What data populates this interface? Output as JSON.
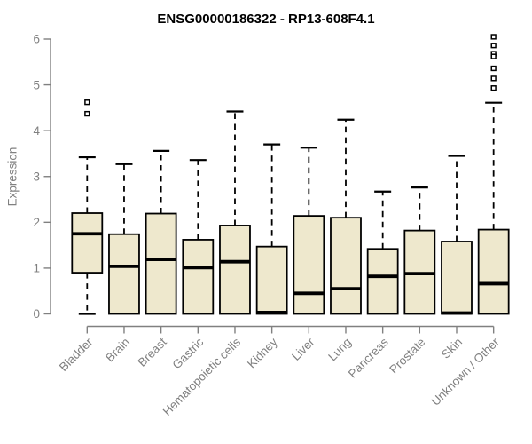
{
  "chart_data": {
    "type": "boxplot",
    "title": "ENSG00000186322 - RP13-608F4.1",
    "ylabel": "Expression",
    "xlabel": "",
    "ylim": [
      0,
      6
    ],
    "yticks": [
      0,
      1,
      2,
      3,
      4,
      5,
      6
    ],
    "grid": false,
    "legend": null,
    "categories": [
      "Bladder",
      "Brain",
      "Breast",
      "Gastric",
      "Hematopoietic cells",
      "Kidney",
      "Liver",
      "Lung",
      "Pancreas",
      "Prostate",
      "Skin",
      "Unknown / Other"
    ],
    "series": [
      {
        "name": "Bladder",
        "whisker_low": 0,
        "q1": 0.9,
        "median": 1.75,
        "q3": 2.2,
        "whisker_high": 3.42,
        "outliers": [
          4.62,
          4.37
        ]
      },
      {
        "name": "Brain",
        "whisker_low": 0,
        "q1": 0.0,
        "median": 1.04,
        "q3": 1.74,
        "whisker_high": 3.27,
        "outliers": []
      },
      {
        "name": "Breast",
        "whisker_low": 0,
        "q1": 0.0,
        "median": 1.19,
        "q3": 2.19,
        "whisker_high": 3.56,
        "outliers": []
      },
      {
        "name": "Gastric",
        "whisker_low": 0,
        "q1": 0.0,
        "median": 1.01,
        "q3": 1.62,
        "whisker_high": 3.36,
        "outliers": []
      },
      {
        "name": "Hematopoietic cells",
        "whisker_low": 0,
        "q1": 0.0,
        "median": 1.14,
        "q3": 1.93,
        "whisker_high": 4.42,
        "outliers": []
      },
      {
        "name": "Kidney",
        "whisker_low": 0,
        "q1": 0.0,
        "median": 0.03,
        "q3": 1.47,
        "whisker_high": 3.7,
        "outliers": []
      },
      {
        "name": "Liver",
        "whisker_low": 0,
        "q1": 0.0,
        "median": 0.45,
        "q3": 2.14,
        "whisker_high": 3.63,
        "outliers": []
      },
      {
        "name": "Lung",
        "whisker_low": 0,
        "q1": 0.0,
        "median": 0.55,
        "q3": 2.1,
        "whisker_high": 4.24,
        "outliers": []
      },
      {
        "name": "Pancreas",
        "whisker_low": 0,
        "q1": 0.0,
        "median": 0.82,
        "q3": 1.42,
        "whisker_high": 2.67,
        "outliers": []
      },
      {
        "name": "Prostate",
        "whisker_low": 0,
        "q1": 0.0,
        "median": 0.88,
        "q3": 1.82,
        "whisker_high": 2.76,
        "outliers": []
      },
      {
        "name": "Skin",
        "whisker_low": 0,
        "q1": 0.0,
        "median": 0.02,
        "q3": 1.58,
        "whisker_high": 3.45,
        "outliers": []
      },
      {
        "name": "Unknown / Other",
        "whisker_low": 0,
        "q1": 0.0,
        "median": 0.66,
        "q3": 1.84,
        "whisker_high": 4.61,
        "outliers": [
          6.05,
          5.86,
          5.68,
          5.62,
          5.36,
          5.14,
          4.93
        ]
      }
    ],
    "colors": {
      "box_fill": "#EEE8CD",
      "box_border": "#000000",
      "median": "#000000",
      "whisker": "#000000",
      "outlier_stroke": "#000000",
      "outlier_fill": "#FFFFFF",
      "axis": "#808080",
      "tick_label": "#808080",
      "title": "#000000",
      "background": "#FFFFFF"
    }
  }
}
